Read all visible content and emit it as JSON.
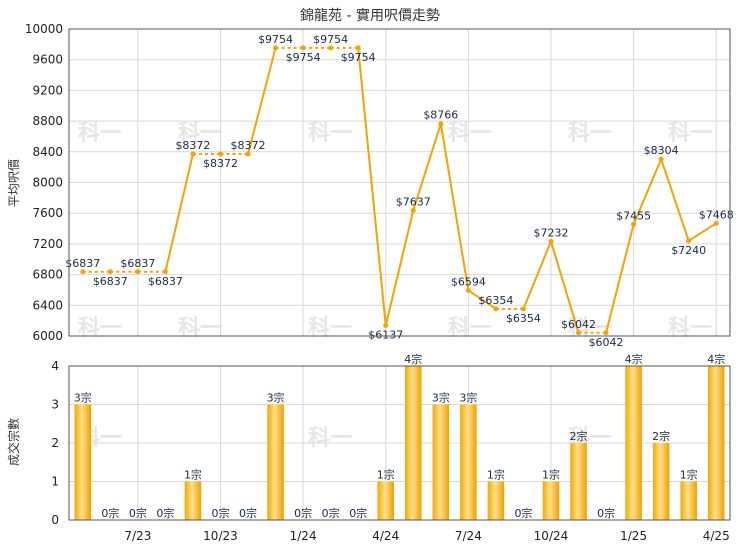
{
  "chart_data": [
    {
      "type": "line",
      "title": "錦龍苑 - 實用呎價走勢",
      "ylabel": "平均呎價",
      "ylim": [
        6000,
        10000
      ],
      "yticks": [
        6000,
        6400,
        6800,
        7200,
        7600,
        8000,
        8400,
        8800,
        9200,
        9600,
        10000
      ],
      "grid": true,
      "color": "#f5a300",
      "series": [
        {
          "values": [
            6837,
            6837,
            6837,
            6837,
            8372,
            8372,
            8372,
            9754,
            9754,
            9754,
            9754,
            6137,
            7637,
            8766,
            6594,
            6354,
            6354,
            7232,
            6042,
            6042,
            7455,
            8304,
            7240,
            7468
          ],
          "labels": [
            "$6837",
            "$6837",
            "$6837",
            "$6837",
            "$8372",
            "$8372",
            "$8372",
            "$9754",
            "$9754",
            "$9754",
            "$9754",
            "$6137",
            "$7637",
            "$8766",
            "$6594",
            "$6354",
            "$6354",
            "$7232",
            "$6042",
            "$6042",
            "$7455",
            "$8304",
            "$7240",
            "$7468"
          ]
        }
      ]
    },
    {
      "type": "bar",
      "ylabel": "成交宗數",
      "ylim": [
        0,
        4
      ],
      "yticks": [
        0,
        1,
        2,
        3,
        4
      ],
      "grid": true,
      "color": "#f5b000",
      "categories": [
        "7/23",
        "10/23",
        "1/24",
        "4/24",
        "7/24",
        "10/24",
        "1/25",
        "4/25"
      ],
      "values": [
        3,
        0,
        0,
        0,
        1,
        0,
        0,
        3,
        0,
        0,
        0,
        1,
        4,
        3,
        3,
        1,
        0,
        1,
        2,
        0,
        4,
        2,
        1,
        4
      ],
      "labels": [
        "3宗",
        "0宗",
        "0宗",
        "0宗",
        "1宗",
        "0宗",
        "0宗",
        "3宗",
        "0宗",
        "0宗",
        "0宗",
        "1宗",
        "4宗",
        "3宗",
        "3宗",
        "1宗",
        "0宗",
        "1宗",
        "2宗",
        "0宗",
        "4宗",
        "2宗",
        "1宗",
        "4宗"
      ]
    }
  ],
  "watermark": "科一"
}
